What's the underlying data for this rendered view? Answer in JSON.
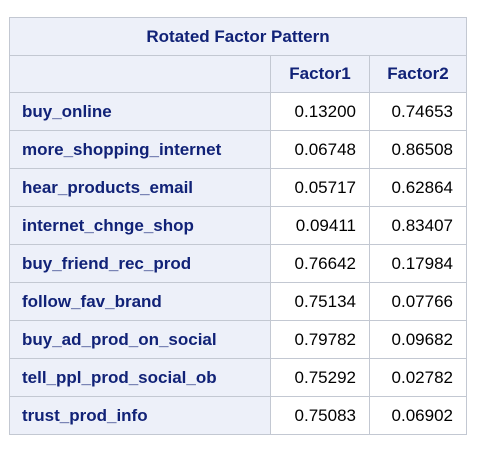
{
  "table": {
    "title": "Rotated Factor Pattern",
    "columns": [
      "Factor1",
      "Factor2"
    ],
    "rows": [
      {
        "label": "buy_online",
        "values": [
          "0.13200",
          "0.74653"
        ]
      },
      {
        "label": "more_shopping_internet",
        "values": [
          "0.06748",
          "0.86508"
        ]
      },
      {
        "label": "hear_products_email",
        "values": [
          "0.05717",
          "0.62864"
        ]
      },
      {
        "label": "internet_chnge_shop",
        "values": [
          "0.09411",
          "0.83407"
        ]
      },
      {
        "label": "buy_friend_rec_prod",
        "values": [
          "0.76642",
          "0.17984"
        ]
      },
      {
        "label": "follow_fav_brand",
        "values": [
          "0.75134",
          "0.07766"
        ]
      },
      {
        "label": "buy_ad_prod_on_social",
        "values": [
          "0.79782",
          "0.09682"
        ]
      },
      {
        "label": "tell_ppl_prod_social_ob",
        "values": [
          "0.75292",
          "0.02782"
        ]
      },
      {
        "label": "trust_prod_info",
        "values": [
          "0.75083",
          "0.06902"
        ]
      }
    ]
  }
}
